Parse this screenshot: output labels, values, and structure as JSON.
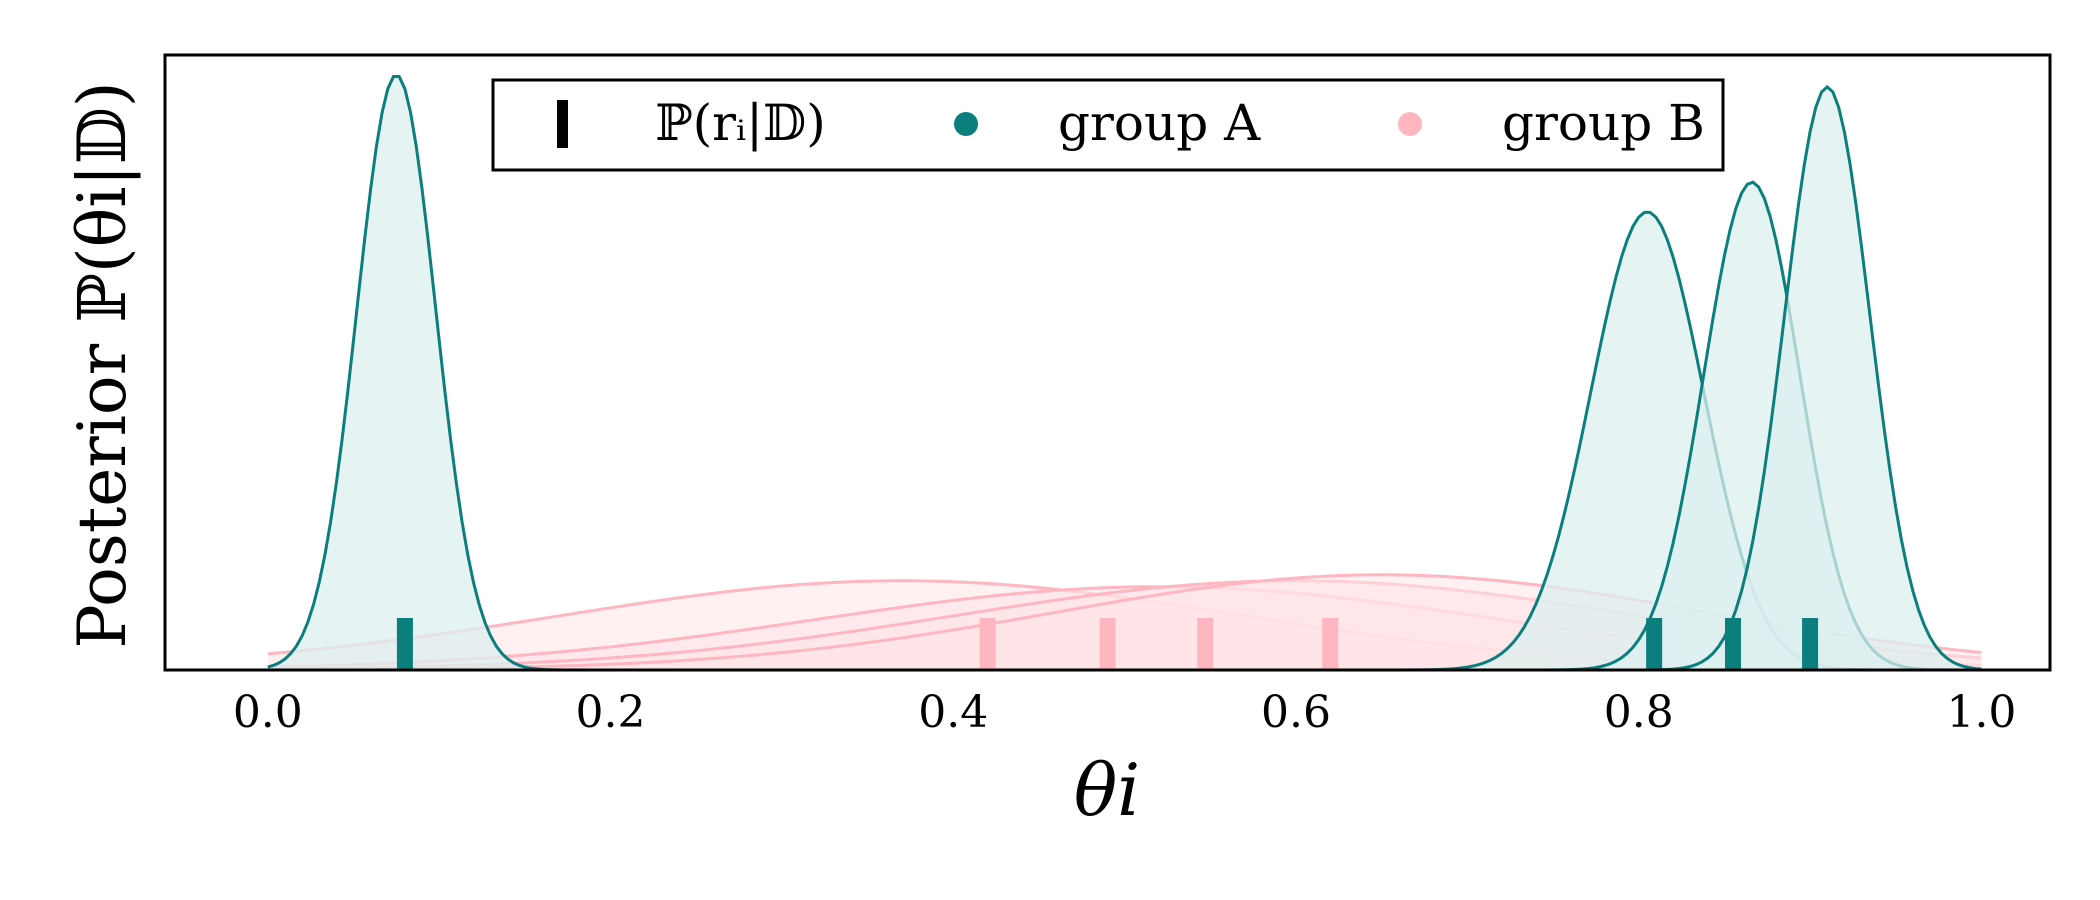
{
  "chart_data": {
    "type": "area",
    "xlabel": "θi",
    "ylabel": "Posterior ℙ(θi|𝔻)",
    "xlim": [
      -0.06,
      1.04
    ],
    "ylim": [
      0,
      1.0
    ],
    "xticks": [
      "0.0",
      "0.2",
      "0.4",
      "0.6",
      "0.8",
      "1.0"
    ],
    "xtick_values": [
      0.0,
      0.2,
      0.4,
      0.6,
      0.8,
      1.0
    ],
    "grid": false,
    "legend": {
      "placement": "top-center",
      "entries": [
        {
          "label": "ℙ(rᵢ|𝔻)",
          "marker": "bar",
          "color": "#000000"
        },
        {
          "label": "group A",
          "marker": "dot",
          "color": "#0b7e7e"
        },
        {
          "label": "group B",
          "marker": "dot",
          "color": "#ffb6c1"
        }
      ]
    },
    "colors": {
      "group_a": "#0b7e7e",
      "group_a_fill": "#dcefef",
      "group_b": "#ffb6c1",
      "group_b_fill": "#ffe4e8"
    },
    "series": [
      {
        "group": "A",
        "peak_x": 0.075,
        "peak_density": 1.0,
        "spread": 0.023,
        "point_estimate": 0.08
      },
      {
        "group": "A",
        "peak_x": 0.805,
        "peak_density": 0.77,
        "spread": 0.033,
        "point_estimate": 0.809
      },
      {
        "group": "A",
        "peak_x": 0.866,
        "peak_density": 0.82,
        "spread": 0.028,
        "point_estimate": 0.855
      },
      {
        "group": "A",
        "peak_x": 0.91,
        "peak_density": 0.98,
        "spread": 0.025,
        "point_estimate": 0.9
      },
      {
        "group": "B",
        "peak_x": 0.37,
        "peak_density": 0.15,
        "spread": 0.2,
        "point_estimate": 0.42
      },
      {
        "group": "B",
        "peak_x": 0.52,
        "peak_density": 0.14,
        "spread": 0.2,
        "point_estimate": 0.49
      },
      {
        "group": "B",
        "peak_x": 0.6,
        "peak_density": 0.15,
        "spread": 0.2,
        "point_estimate": 0.547
      },
      {
        "group": "B",
        "peak_x": 0.65,
        "peak_density": 0.16,
        "spread": 0.19,
        "point_estimate": 0.62
      }
    ]
  }
}
